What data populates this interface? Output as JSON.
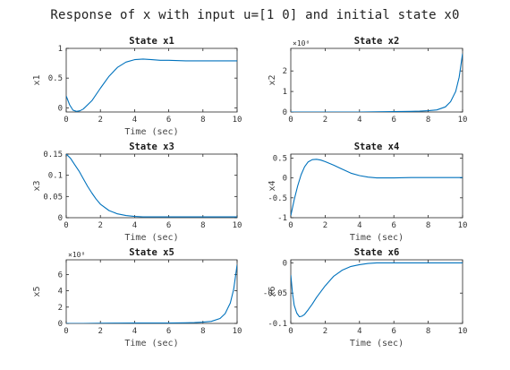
{
  "figure": {
    "title": "Response of x with input u=[1 0] and initial state x0",
    "line_color": "#0072BD"
  },
  "chart_data": [
    {
      "type": "line",
      "title": "State x1",
      "xlabel": "Time (sec)",
      "ylabel": "x1",
      "xlim": [
        0,
        10
      ],
      "ylim": [
        -0.07,
        1.0
      ],
      "xticks": [
        "0",
        "2",
        "4",
        "6",
        "8",
        "10"
      ],
      "yticks": [
        "0",
        "0.5",
        "1"
      ],
      "ytick_values": [
        0,
        0.5,
        1
      ],
      "exponent": "",
      "x": [
        0,
        0.2,
        0.4,
        0.6,
        0.8,
        1,
        1.5,
        2,
        2.5,
        3,
        3.5,
        4,
        4.5,
        5,
        5.5,
        6,
        7,
        8,
        9,
        10
      ],
      "y": [
        0.2,
        0.05,
        -0.04,
        -0.06,
        -0.05,
        -0.02,
        0.12,
        0.33,
        0.53,
        0.68,
        0.77,
        0.81,
        0.82,
        0.81,
        0.8,
        0.8,
        0.79,
        0.79,
        0.79,
        0.79
      ]
    },
    {
      "type": "line",
      "title": "State x2",
      "xlabel": "",
      "ylabel": "x2",
      "xlim": [
        0,
        10
      ],
      "ylim": [
        0,
        3.1
      ],
      "xticks": [
        "0",
        "2",
        "4",
        "6",
        "8",
        "10"
      ],
      "yticks": [
        "0",
        "1",
        "2"
      ],
      "ytick_values": [
        0,
        1,
        2
      ],
      "exponent": "×10⁸",
      "x": [
        0,
        1,
        2,
        3,
        4,
        5,
        6,
        7,
        7.5,
        8,
        8.5,
        9,
        9.3,
        9.6,
        9.8,
        10
      ],
      "y": [
        0,
        0,
        0,
        0,
        0,
        0.01,
        0.02,
        0.03,
        0.04,
        0.06,
        0.1,
        0.25,
        0.5,
        1.0,
        1.7,
        2.85
      ]
    },
    {
      "type": "line",
      "title": "State x3",
      "xlabel": "Time (sec)",
      "ylabel": "x3",
      "xlim": [
        0,
        10
      ],
      "ylim": [
        0,
        0.15
      ],
      "xticks": [
        "0",
        "2",
        "4",
        "6",
        "8",
        "10"
      ],
      "yticks": [
        "0",
        "0.05",
        "0.1",
        "0.15"
      ],
      "ytick_values": [
        0,
        0.05,
        0.1,
        0.15
      ],
      "exponent": "",
      "x": [
        0,
        0.25,
        0.5,
        0.75,
        1,
        1.25,
        1.5,
        1.75,
        2,
        2.5,
        3,
        3.5,
        4,
        4.5,
        5,
        6,
        7,
        8,
        9,
        10
      ],
      "y": [
        0.15,
        0.14,
        0.125,
        0.11,
        0.092,
        0.074,
        0.058,
        0.044,
        0.032,
        0.017,
        0.009,
        0.005,
        0.003,
        0.002,
        0.002,
        0.002,
        0.002,
        0.002,
        0.002,
        0.002
      ]
    },
    {
      "type": "line",
      "title": "State x4",
      "xlabel": "Time (sec)",
      "ylabel": "x4",
      "xlim": [
        0,
        10
      ],
      "ylim": [
        -1,
        0.6
      ],
      "xticks": [
        "0",
        "2",
        "4",
        "6",
        "8",
        "10"
      ],
      "yticks": [
        "-1",
        "-0.5",
        "0",
        "0.5"
      ],
      "ytick_values": [
        -1,
        -0.5,
        0,
        0.5
      ],
      "exponent": "",
      "x": [
        0,
        0.2,
        0.4,
        0.6,
        0.8,
        1,
        1.25,
        1.5,
        1.75,
        2,
        2.5,
        3,
        3.5,
        4,
        4.5,
        5,
        6,
        7,
        8,
        9,
        10
      ],
      "y": [
        -0.95,
        -0.55,
        -0.2,
        0.08,
        0.28,
        0.4,
        0.46,
        0.47,
        0.45,
        0.41,
        0.32,
        0.22,
        0.12,
        0.06,
        0.02,
        0.0,
        0.0,
        0.01,
        0.01,
        0.01,
        0.01
      ]
    },
    {
      "type": "line",
      "title": "State x5",
      "xlabel": "Time (sec)",
      "ylabel": "x5",
      "xlim": [
        0,
        10
      ],
      "ylim": [
        0,
        7.8
      ],
      "xticks": [
        "0",
        "2",
        "4",
        "6",
        "8",
        "10"
      ],
      "yticks": [
        "0",
        "2",
        "4",
        "6"
      ],
      "ytick_values": [
        0,
        2,
        4,
        6
      ],
      "exponent": "×10⁸",
      "x": [
        0,
        1,
        2,
        3,
        4,
        5,
        6,
        7,
        7.5,
        8,
        8.5,
        9,
        9.3,
        9.6,
        9.8,
        10
      ],
      "y": [
        0,
        0,
        0.02,
        0.03,
        0.04,
        0.05,
        0.06,
        0.08,
        0.1,
        0.15,
        0.25,
        0.6,
        1.2,
        2.5,
        4.2,
        7.2
      ]
    },
    {
      "type": "line",
      "title": "State x6",
      "xlabel": "Time (sec)",
      "ylabel": "x6",
      "xlim": [
        0,
        10
      ],
      "ylim": [
        -0.1,
        0.005
      ],
      "xticks": [
        "0",
        "2",
        "4",
        "6",
        "8",
        "10"
      ],
      "yticks": [
        "-0.1",
        "-0.05",
        "0"
      ],
      "ytick_values": [
        -0.1,
        -0.05,
        0
      ],
      "exponent": "",
      "x": [
        0,
        0.1,
        0.2,
        0.35,
        0.5,
        0.65,
        0.8,
        1,
        1.25,
        1.5,
        2,
        2.5,
        3,
        3.5,
        4,
        4.5,
        5,
        6,
        7,
        8,
        9,
        10
      ],
      "y": [
        -0.02,
        -0.05,
        -0.07,
        -0.083,
        -0.089,
        -0.088,
        -0.085,
        -0.078,
        -0.068,
        -0.057,
        -0.038,
        -0.022,
        -0.012,
        -0.006,
        -0.003,
        -0.001,
        0,
        0,
        0,
        0,
        0,
        0
      ]
    }
  ]
}
